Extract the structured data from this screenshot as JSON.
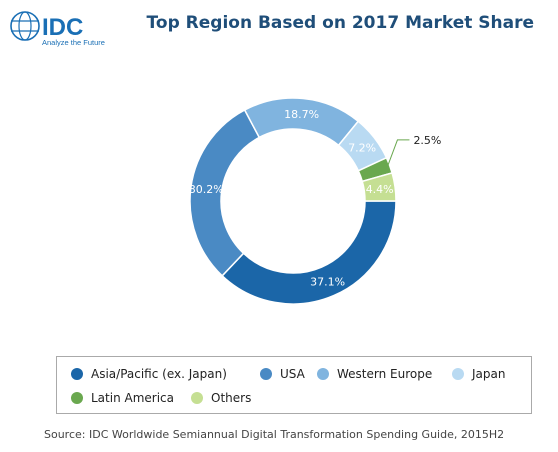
{
  "logo": {
    "brand": "IDC",
    "tagline": "Analyze the Future",
    "color": "#1a6fb5"
  },
  "chart_data": {
    "type": "pie",
    "variant": "donut",
    "title": "Top Region Based on 2017 Market Share",
    "categories": [
      "Asia/Pacific (ex. Japan)",
      "USA",
      "Western Europe",
      "Japan",
      "Latin America",
      "Others"
    ],
    "values": [
      37.1,
      30.2,
      18.7,
      7.2,
      2.5,
      4.4
    ],
    "labels": [
      "37.1%",
      "30.2%",
      "18.7%",
      "7.2%",
      "2.5%",
      "4.4%"
    ],
    "colors": [
      "#1b66a8",
      "#4a8ac4",
      "#80b4df",
      "#b9daf2",
      "#6aa84f",
      "#c5df93"
    ],
    "label_colors": [
      "#ffffff",
      "#ffffff",
      "#ffffff",
      "#ffffff",
      "#222222",
      "#ffffff"
    ],
    "start": "bottom-right, clockwise",
    "legend_position": "bottom"
  },
  "source": "Source: IDC Worldwide Semiannual Digital Transformation Spending Guide, 2015H2"
}
